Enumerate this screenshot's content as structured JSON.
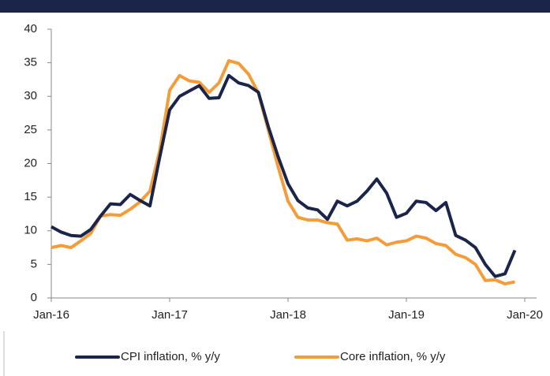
{
  "chart_data": {
    "type": "line",
    "categories": [
      "Jan-16",
      null,
      null,
      null,
      null,
      null,
      null,
      null,
      null,
      null,
      null,
      null,
      "Jan-17",
      null,
      null,
      null,
      null,
      null,
      null,
      null,
      null,
      null,
      null,
      null,
      "Jan-18",
      null,
      null,
      null,
      null,
      null,
      null,
      null,
      null,
      null,
      null,
      null,
      "Jan-19",
      null,
      null,
      null,
      null,
      null,
      null,
      null,
      null,
      null,
      null,
      null,
      "Jan-20"
    ],
    "series": [
      {
        "name": "CPI inflation, % y/y",
        "color": "#1b2449",
        "values": [
          10.6,
          9.8,
          9.3,
          9.2,
          10.2,
          12.2,
          14.0,
          13.9,
          15.4,
          14.5,
          13.7,
          21.0,
          28.0,
          30.0,
          30.8,
          31.6,
          29.7,
          29.8,
          33.1,
          32.0,
          31.6,
          30.6,
          25.5,
          21.0,
          17.0,
          14.5,
          13.4,
          13.1,
          11.7,
          14.4,
          13.7,
          14.4,
          15.9,
          17.7,
          15.6,
          12.0,
          12.6,
          14.4,
          14.2,
          13.0,
          14.2,
          9.3,
          8.6,
          7.5,
          5.0,
          3.2,
          3.6,
          7.1,
          null
        ]
      },
      {
        "name": "Core inflation, % y/y",
        "color": "#f39c38",
        "values": [
          7.5,
          7.8,
          7.5,
          8.5,
          9.6,
          12.2,
          12.4,
          12.3,
          13.2,
          14.3,
          15.9,
          22.0,
          30.9,
          33.1,
          32.3,
          32.1,
          30.6,
          32.0,
          35.3,
          34.9,
          33.3,
          30.5,
          25.0,
          19.5,
          14.4,
          12.0,
          11.6,
          11.6,
          11.2,
          11.0,
          8.6,
          8.8,
          8.5,
          8.9,
          7.9,
          8.3,
          8.5,
          9.2,
          8.9,
          8.1,
          7.8,
          6.5,
          6.0,
          5.0,
          2.6,
          2.7,
          2.1,
          2.4,
          null
        ]
      }
    ],
    "ylim": [
      0,
      40
    ],
    "yticks": [
      0,
      5,
      10,
      15,
      20,
      25,
      30,
      35,
      40
    ],
    "legend": "bottom"
  }
}
